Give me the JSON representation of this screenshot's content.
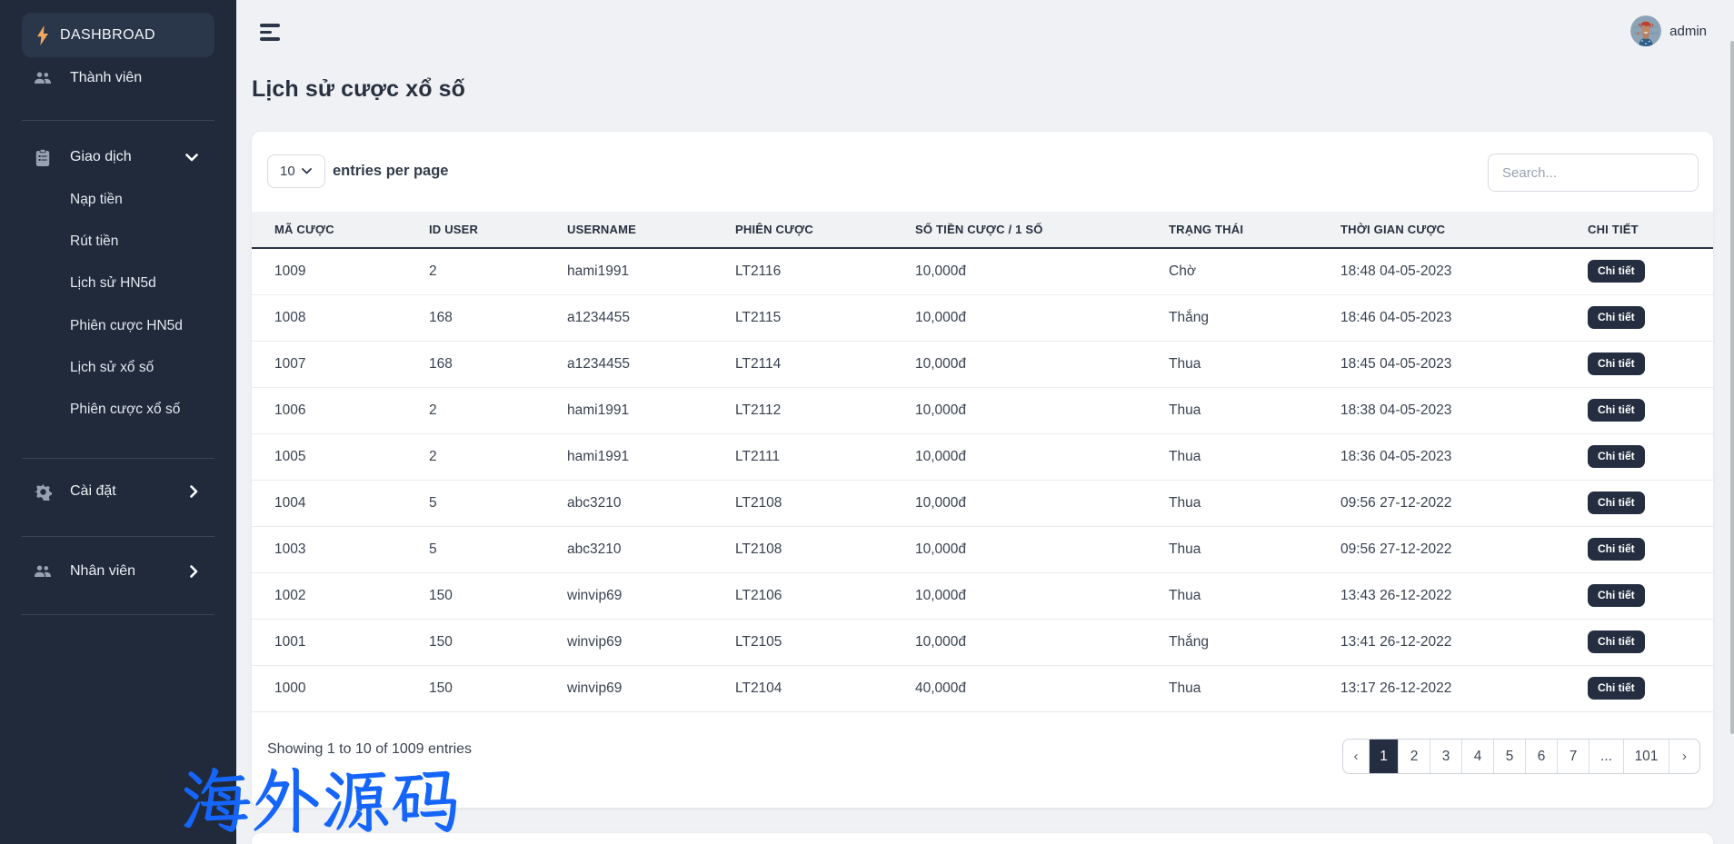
{
  "brand": {
    "name": "DASHBROAD"
  },
  "user": {
    "name": "admin"
  },
  "sidebar": {
    "items": [
      {
        "label": "Thành viên",
        "icon": "users"
      },
      {
        "label": "Giao dịch",
        "icon": "clipboard",
        "state": "expanded",
        "children": [
          "Nạp tiền",
          "Rút tiền",
          "Lịch sử HN5d",
          "Phiên cược HN5d",
          "Lịch sử xổ số",
          "Phiên cược xổ số"
        ]
      },
      {
        "label": "Cài đặt",
        "icon": "gear",
        "state": "collapsed"
      },
      {
        "label": "Nhân viên",
        "icon": "users",
        "state": "collapsed"
      }
    ]
  },
  "page": {
    "title": "Lịch sử cược xổ số"
  },
  "controls": {
    "entries_value": "10",
    "entries_label": "entries per page",
    "search_placeholder": "Search..."
  },
  "table": {
    "columns": [
      "MÃ CƯỢC",
      "ID USER",
      "USERNAME",
      "PHIÊN CƯỢC",
      "SỐ TIỀN CƯỢC / 1 SỐ",
      "TRẠNG THÁI",
      "THỜI GIAN CƯỢC",
      "CHI TIẾT"
    ],
    "detail_button_label": "Chi tiết",
    "rows": [
      [
        "1009",
        "2",
        "hami1991",
        "LT2116",
        "10,000đ",
        "Chờ",
        "18:48 04-05-2023"
      ],
      [
        "1008",
        "168",
        "a1234455",
        "LT2115",
        "10,000đ",
        "Thắng",
        "18:46 04-05-2023"
      ],
      [
        "1007",
        "168",
        "a1234455",
        "LT2114",
        "10,000đ",
        "Thua",
        "18:45 04-05-2023"
      ],
      [
        "1006",
        "2",
        "hami1991",
        "LT2112",
        "10,000đ",
        "Thua",
        "18:38 04-05-2023"
      ],
      [
        "1005",
        "2",
        "hami1991",
        "LT2111",
        "10,000đ",
        "Thua",
        "18:36 04-05-2023"
      ],
      [
        "1004",
        "5",
        "abc3210",
        "LT2108",
        "10,000đ",
        "Thua",
        "09:56 27-12-2022"
      ],
      [
        "1003",
        "5",
        "abc3210",
        "LT2108",
        "10,000đ",
        "Thua",
        "09:56 27-12-2022"
      ],
      [
        "1002",
        "150",
        "winvip69",
        "LT2106",
        "10,000đ",
        "Thua",
        "13:43 26-12-2022"
      ],
      [
        "1001",
        "150",
        "winvip69",
        "LT2105",
        "10,000đ",
        "Thắng",
        "13:41 26-12-2022"
      ],
      [
        "1000",
        "150",
        "winvip69",
        "LT2104",
        "40,000đ",
        "Thua",
        "13:17 26-12-2022"
      ]
    ]
  },
  "footer": {
    "showing_text": "Showing 1 to 10 of 1009 entries",
    "pagination": [
      "‹",
      "1",
      "2",
      "3",
      "4",
      "5",
      "6",
      "7",
      "...",
      "101",
      "›"
    ],
    "active_page": "1"
  },
  "watermark": {
    "text": "海外源码",
    "color": "#1565FB"
  },
  "colors": {
    "sidebar_bg": "#202A3A",
    "page_bg": "#EFF1F4",
    "accent_dark": "#27303F",
    "brand_bolt": "#F0A75E",
    "watermark_blue": "#1565FB"
  }
}
